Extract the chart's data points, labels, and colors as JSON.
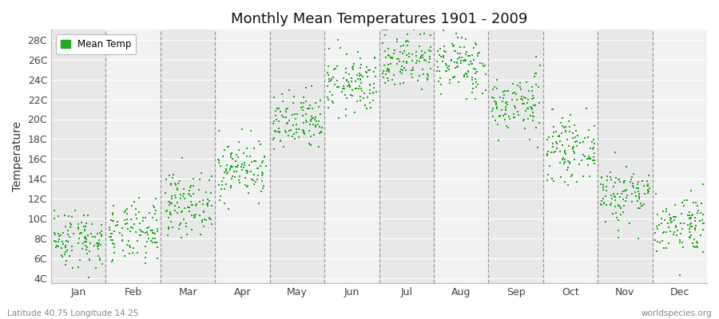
{
  "title": "Monthly Mean Temperatures 1901 - 2009",
  "ylabel": "Temperature",
  "ytick_labels": [
    "4C",
    "6C",
    "8C",
    "10C",
    "12C",
    "14C",
    "16C",
    "18C",
    "20C",
    "22C",
    "24C",
    "26C",
    "28C"
  ],
  "ytick_values": [
    4,
    6,
    8,
    10,
    12,
    14,
    16,
    18,
    20,
    22,
    24,
    26,
    28
  ],
  "ylim": [
    3.5,
    29
  ],
  "months": [
    "Jan",
    "Feb",
    "Mar",
    "Apr",
    "May",
    "Jun",
    "Jul",
    "Aug",
    "Sep",
    "Oct",
    "Nov",
    "Dec"
  ],
  "dot_color": "#22aa22",
  "stripe_colors": [
    "#e8e8e8",
    "#f2f2f2"
  ],
  "legend_label": "Mean Temp",
  "footer_left": "Latitude 40.75 Longitude 14.25",
  "footer_right": "worldspecies.org",
  "n_years": 109,
  "seed": 42,
  "monthly_mean": [
    8.0,
    8.5,
    11.5,
    15.0,
    19.5,
    23.5,
    26.0,
    25.5,
    21.5,
    17.0,
    12.5,
    9.5
  ],
  "monthly_std": [
    1.5,
    1.5,
    1.5,
    1.5,
    1.5,
    1.5,
    1.5,
    1.5,
    1.5,
    1.5,
    1.5,
    1.5
  ],
  "dot_size": 4,
  "figsize": [
    9.0,
    4.0
  ],
  "dpi": 100
}
